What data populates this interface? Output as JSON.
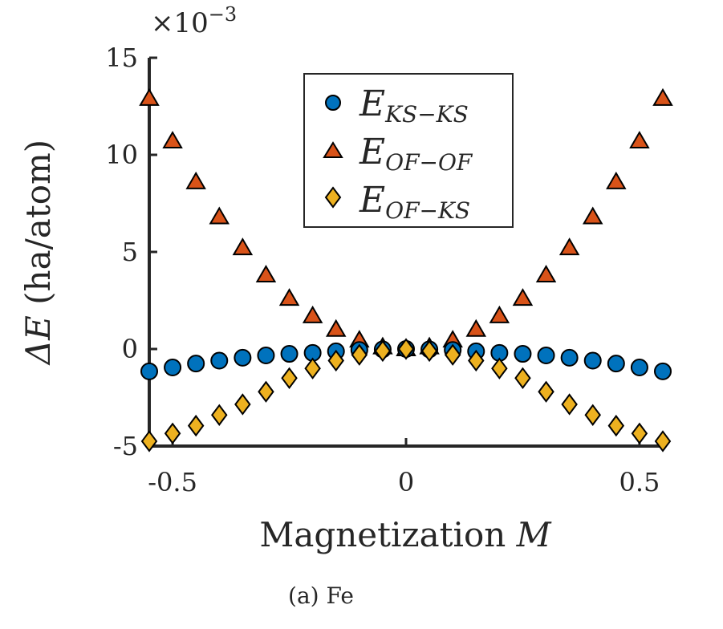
{
  "chart_data": {
    "type": "scatter",
    "title": "",
    "caption": "(a) Fe",
    "xlabel": "Magnetization",
    "xlabel_var": "M",
    "ylabel": "(ha/atom)",
    "ylabel_var": "ΔE",
    "y_exponent": "×10",
    "y_exponent_power": "−3",
    "xlim": [
      -0.55,
      0.55
    ],
    "ylim": [
      -5,
      15
    ],
    "xticks": [
      -0.5,
      0,
      0.5
    ],
    "xtick_labels": [
      "-0.5",
      "0",
      "0.5"
    ],
    "yticks": [
      -5,
      0,
      5,
      10,
      15
    ],
    "ytick_labels": [
      "-5",
      "0",
      "5",
      "10",
      "15"
    ],
    "grid": false,
    "legend_position": "top-center",
    "x": [
      -0.55,
      -0.5,
      -0.45,
      -0.4,
      -0.35,
      -0.3,
      -0.25,
      -0.2,
      -0.15,
      -0.1,
      -0.05,
      0,
      0.05,
      0.1,
      0.15,
      0.2,
      0.25,
      0.3,
      0.35,
      0.4,
      0.45,
      0.5,
      0.55
    ],
    "series": [
      {
        "name": "E",
        "sub": "KS−KS",
        "marker": "circle",
        "color": "#0072BD",
        "values": [
          -1.15,
          -0.95,
          -0.75,
          -0.6,
          -0.45,
          -0.33,
          -0.25,
          -0.2,
          -0.12,
          -0.05,
          -0.02,
          0,
          -0.02,
          -0.05,
          -0.12,
          -0.2,
          -0.25,
          -0.33,
          -0.45,
          -0.6,
          -0.75,
          -0.95,
          -1.15
        ]
      },
      {
        "name": "E",
        "sub": "OF−OF",
        "marker": "triangle",
        "color": "#D95319",
        "values": [
          12.9,
          10.7,
          8.6,
          6.8,
          5.2,
          3.8,
          2.6,
          1.7,
          1.0,
          0.45,
          0.1,
          0,
          0.1,
          0.45,
          1.0,
          1.7,
          2.6,
          3.8,
          5.2,
          6.8,
          8.6,
          10.7,
          12.9
        ]
      },
      {
        "name": "E",
        "sub": "OF−KS",
        "marker": "diamond",
        "color": "#EDB120",
        "values": [
          -4.75,
          -4.35,
          -3.95,
          -3.4,
          -2.85,
          -2.2,
          -1.5,
          -1.0,
          -0.6,
          -0.3,
          -0.1,
          0,
          -0.1,
          -0.3,
          -0.6,
          -1.0,
          -1.5,
          -2.2,
          -2.85,
          -3.4,
          -3.95,
          -4.35,
          -4.75
        ]
      }
    ]
  }
}
